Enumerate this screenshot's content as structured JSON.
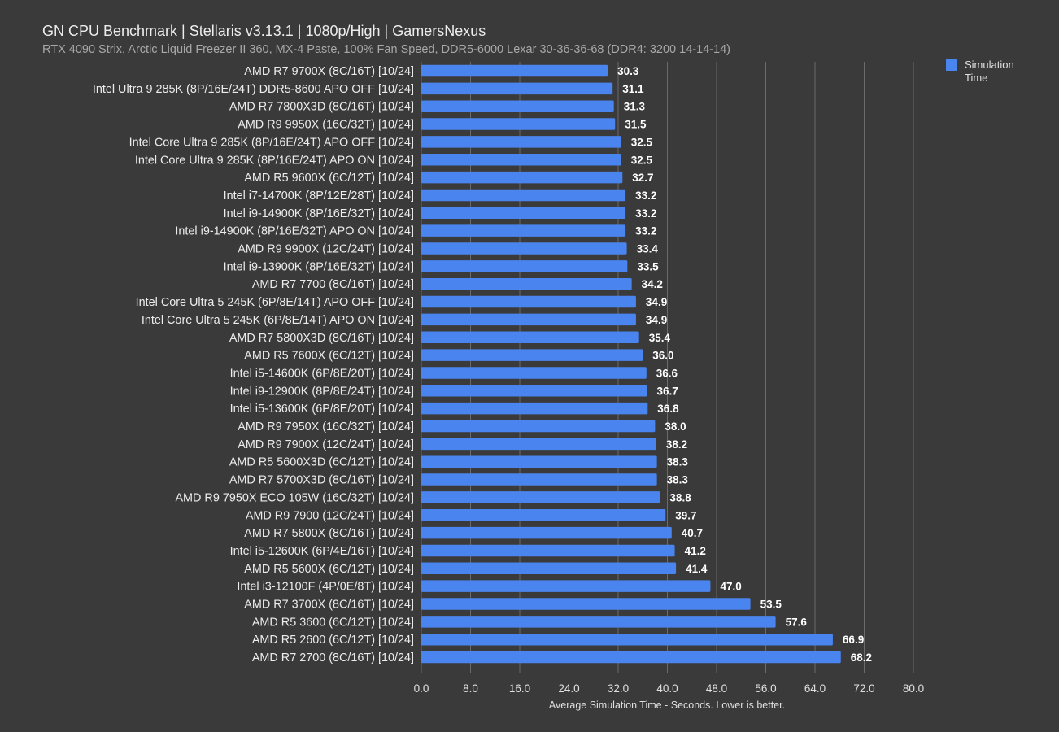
{
  "header": {
    "title": "GN CPU Benchmark | Stellaris v3.13.1 | 1080p/High | GamersNexus",
    "subtitle": "RTX 4090 Strix, Arctic Liquid Freezer II 360, MX-4 Paste, 100% Fan Speed, DDR5-6000 Lexar 30-36-36-68 (DDR4: 3200 14-14-14)"
  },
  "legend": {
    "label": "Simulation Time",
    "color": "#4a84ee"
  },
  "chart_data": {
    "type": "bar",
    "orientation": "horizontal",
    "title": "GN CPU Benchmark | Stellaris v3.13.1 | 1080p/High | GamersNexus",
    "subtitle": "RTX 4090 Strix, Arctic Liquid Freezer II 360, MX-4 Paste, 100% Fan Speed, DDR5-6000 Lexar 30-36-36-68 (DDR4: 3200 14-14-14)",
    "xlabel": "Average Simulation Time - Seconds. Lower is better.",
    "ylabel": "",
    "xlim": [
      0,
      80
    ],
    "xticks": [
      "0.0",
      "8.0",
      "16.0",
      "24.0",
      "32.0",
      "40.0",
      "48.0",
      "56.0",
      "64.0",
      "72.0",
      "80.0"
    ],
    "grid": "vertical",
    "legend_position": "top-right",
    "bar_color": "#4a84ee",
    "categories": [
      "AMD R7 9700X (8C/16T) [10/24]",
      "Intel Ultra 9 285K (8P/16E/24T) DDR5-8600 APO OFF [10/24]",
      "AMD R7 7800X3D (8C/16T) [10/24]",
      "AMD R9 9950X (16C/32T) [10/24]",
      "Intel Core Ultra 9 285K (8P/16E/24T) APO OFF [10/24]",
      "Intel Core Ultra 9 285K (8P/16E/24T) APO ON [10/24]",
      "AMD R5 9600X (6C/12T) [10/24]",
      "Intel i7-14700K (8P/12E/28T) [10/24]",
      "Intel i9-14900K (8P/16E/32T) [10/24]",
      "Intel i9-14900K (8P/16E/32T) APO ON [10/24]",
      "AMD R9 9900X (12C/24T) [10/24]",
      "Intel i9-13900K (8P/16E/32T) [10/24]",
      "AMD R7 7700 (8C/16T) [10/24]",
      "Intel Core Ultra 5 245K (6P/8E/14T) APO OFF [10/24]",
      "Intel Core Ultra 5 245K (6P/8E/14T) APO ON [10/24]",
      "AMD R7 5800X3D (8C/16T) [10/24]",
      "AMD R5 7600X (6C/12T) [10/24]",
      "Intel i5-14600K (6P/8E/20T) [10/24]",
      "Intel i9-12900K (8P/8E/24T) [10/24]",
      "Intel i5-13600K (6P/8E/20T) [10/24]",
      "AMD R9 7950X (16C/32T) [10/24]",
      "AMD R9 7900X (12C/24T) [10/24]",
      "AMD R5 5600X3D (6C/12T) [10/24]",
      "AMD R7 5700X3D (8C/16T) [10/24]",
      "AMD R9 7950X ECO 105W (16C/32T) [10/24]",
      "AMD R9 7900 (12C/24T) [10/24]",
      "AMD R7 5800X (8C/16T) [10/24]",
      "Intel i5-12600K (6P/4E/16T) [10/24]",
      "AMD R5 5600X (6C/12T) [10/24]",
      "Intel i3-12100F (4P/0E/8T) [10/24]",
      "AMD R7 3700X (8C/16T) [10/24]",
      "AMD R5 3600 (6C/12T) [10/24]",
      "AMD R5 2600 (6C/12T) [10/24]",
      "AMD R7 2700 (8C/16T) [10/24]"
    ],
    "series": [
      {
        "name": "Simulation Time",
        "values": [
          30.3,
          31.1,
          31.3,
          31.5,
          32.5,
          32.5,
          32.7,
          33.2,
          33.2,
          33.2,
          33.4,
          33.5,
          34.2,
          34.9,
          34.9,
          35.4,
          36.0,
          36.6,
          36.7,
          36.8,
          38.0,
          38.2,
          38.3,
          38.3,
          38.8,
          39.7,
          40.7,
          41.2,
          41.4,
          47.0,
          53.5,
          57.6,
          66.9,
          68.2
        ],
        "labels": [
          "30.3",
          "31.1",
          "31.3",
          "31.5",
          "32.5",
          "32.5",
          "32.7",
          "33.2",
          "33.2",
          "33.2",
          "33.4",
          "33.5",
          "34.2",
          "34.9",
          "34.9",
          "35.4",
          "36.0",
          "36.6",
          "36.7",
          "36.8",
          "38.0",
          "38.2",
          "38.3",
          "38.3",
          "38.8",
          "39.7",
          "40.7",
          "41.2",
          "41.4",
          "47.0",
          "53.5",
          "57.6",
          "66.9",
          "68.2"
        ]
      }
    ]
  }
}
